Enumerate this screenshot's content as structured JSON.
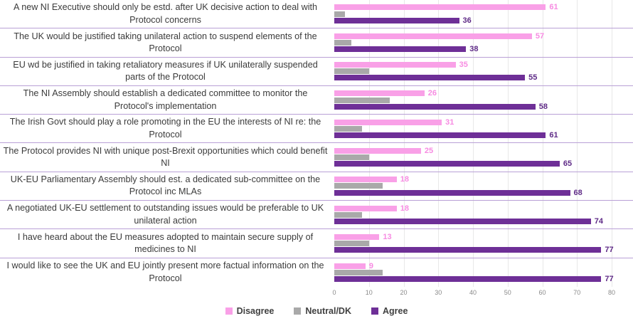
{
  "chart_data": {
    "type": "bar",
    "orientation": "horizontal",
    "title": "",
    "xlabel": "",
    "ylabel": "",
    "xlim": [
      0,
      80
    ],
    "x_ticks": [
      0,
      10,
      20,
      30,
      40,
      50,
      60,
      70,
      80
    ],
    "grid": true,
    "legend_position": "bottom",
    "categories": [
      "A new NI Executive should only be estd. after UK decisive action to deal with Protocol concerns",
      "The UK would be justified taking unilateral action to suspend elements of the Protocol",
      "EU wd be justified in taking retaliatory measures if UK unilaterally suspended parts of the Protocol",
      "The NI Assembly should establish a dedicated committee to monitor the Protocol's implementation",
      "The Irish Govt should play a role promoting in the EU the interests of NI re: the Protocol",
      "The Protocol provides NI with unique post-Brexit opportunities which could benefit NI",
      "UK-EU Parliamentary Assembly should est. a dedicated sub-committee on the Protocol inc MLAs",
      "A negotiated UK-EU settlement to outstanding issues would be preferable to UK unilateral action",
      "I have heard about the EU measures adopted to maintain secure supply of medicines to NI",
      "I would like to see the UK and EU jointly present more factual information on the Protocol"
    ],
    "series": [
      {
        "name": "Disagree",
        "color": "#F9A0E7",
        "label_color": "#F78BE2",
        "show_labels": true,
        "values": [
          61,
          57,
          35,
          26,
          31,
          25,
          18,
          18,
          13,
          9
        ]
      },
      {
        "name": "Neutral/DK",
        "color": "#A9A9A9",
        "label_color": "#7F7F7F",
        "show_labels": false,
        "values": [
          3,
          5,
          10,
          16,
          8,
          10,
          14,
          8,
          10,
          14
        ]
      },
      {
        "name": "Agree",
        "color": "#6E2F97",
        "label_color": "#5F2B87",
        "show_labels": true,
        "values": [
          36,
          38,
          55,
          58,
          61,
          65,
          68,
          74,
          77,
          77
        ]
      }
    ],
    "style": {
      "separator_color": "#B9A0D6",
      "gridline_color": "#E8E8E8",
      "tick_text_color": "#8A8A8A",
      "category_text_color": "#3B3B3B",
      "legend_text_color": "#404040",
      "background": "#FFFFFF",
      "axis_units_full_scale": 84.5
    }
  }
}
